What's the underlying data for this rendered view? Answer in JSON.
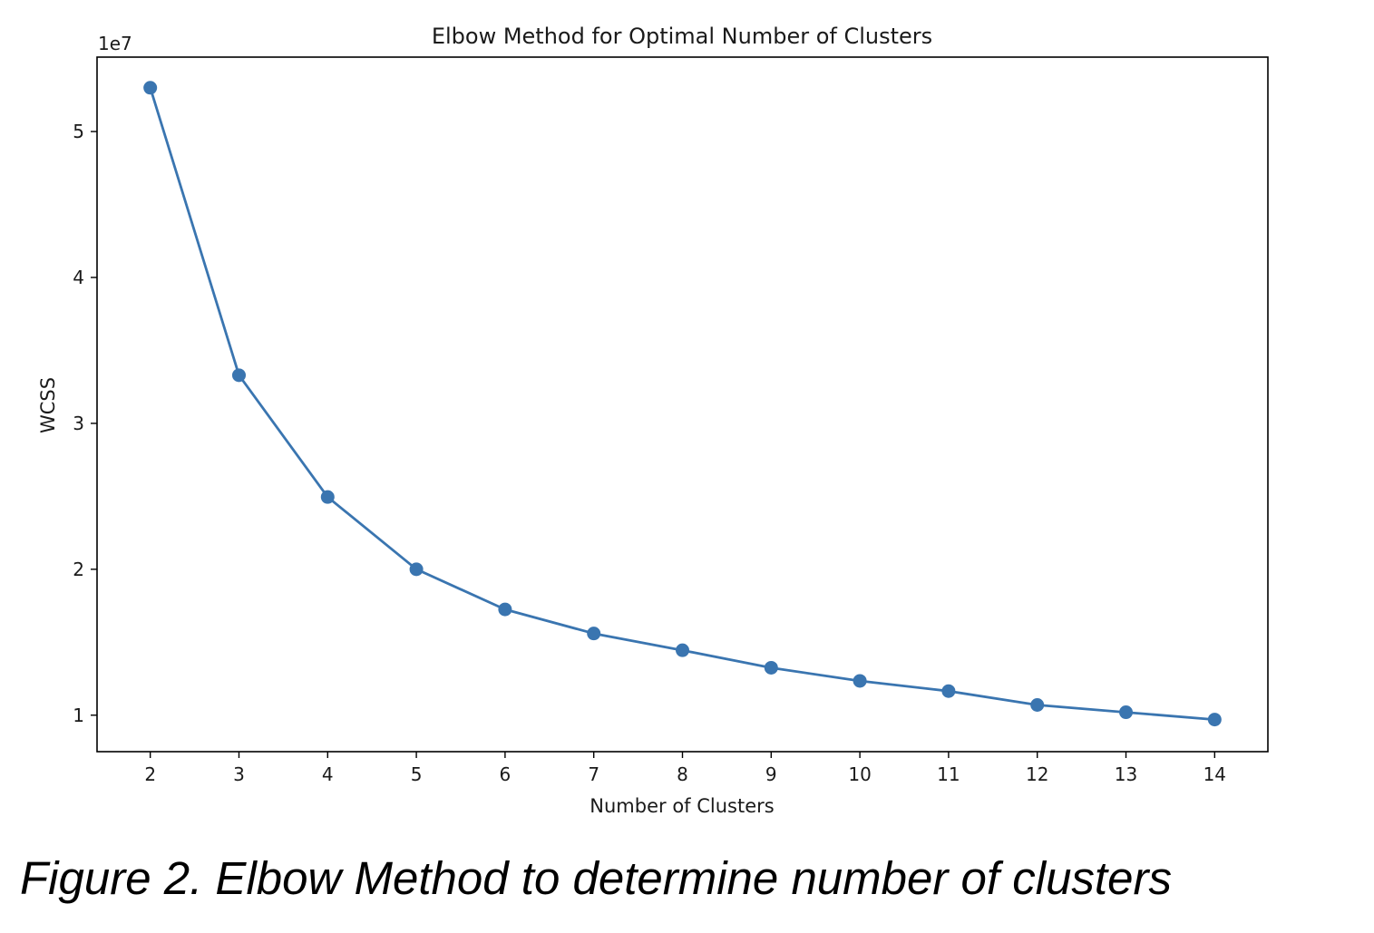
{
  "chart_data": {
    "type": "line",
    "title": "Elbow Method for Optimal Number of Clusters",
    "xlabel": "Number of Clusters",
    "ylabel": "WCSS",
    "y_offset_label": "1e7",
    "x": [
      2,
      3,
      4,
      5,
      6,
      7,
      8,
      9,
      10,
      11,
      12,
      13,
      14
    ],
    "xticks": [
      "2",
      "3",
      "4",
      "5",
      "6",
      "7",
      "8",
      "9",
      "10",
      "11",
      "12",
      "13",
      "14"
    ],
    "yticks": [
      {
        "value": 10000000,
        "label": "1"
      },
      {
        "value": 20000000,
        "label": "2"
      },
      {
        "value": 30000000,
        "label": "3"
      },
      {
        "value": 40000000,
        "label": "4"
      },
      {
        "value": 50000000,
        "label": "5"
      }
    ],
    "series": [
      {
        "values": [
          53000000,
          33300000,
          24950000,
          20000000,
          17250000,
          15600000,
          14450000,
          13250000,
          12350000,
          11650000,
          10700000,
          10200000,
          9700000
        ],
        "color": "#3a75b0",
        "marker": "circle"
      }
    ],
    "xlim": [
      1.4,
      14.6
    ],
    "ylim": [
      7500000,
      55100000
    ],
    "grid": false,
    "legend": "none"
  },
  "caption": "Figure 2. Elbow Method to determine number of clusters"
}
